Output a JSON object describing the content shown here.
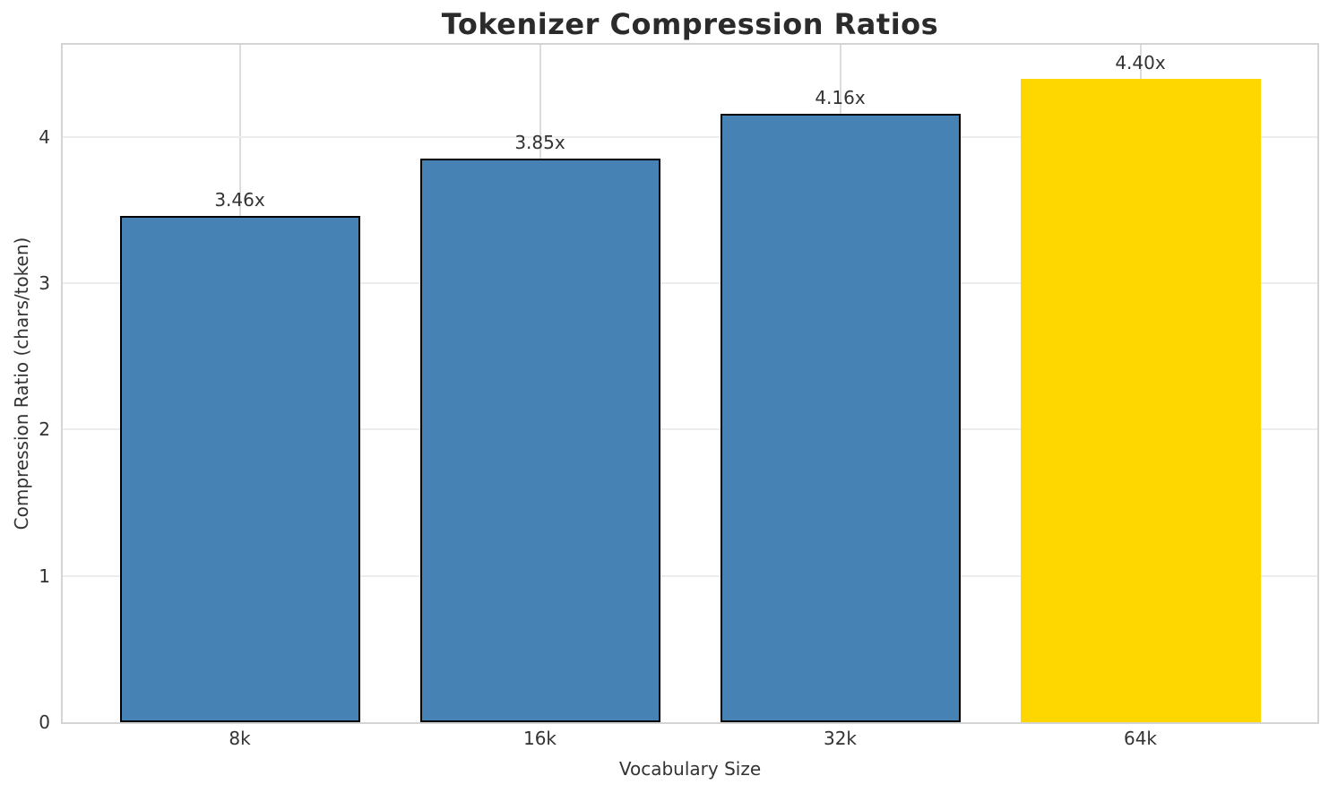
{
  "chart_data": {
    "type": "bar",
    "title": "Tokenizer Compression Ratios",
    "xlabel": "Vocabulary Size",
    "ylabel": "Compression Ratio (chars/token)",
    "categories": [
      "8k",
      "16k",
      "32k",
      "64k"
    ],
    "values": [
      3.46,
      3.85,
      4.16,
      4.4
    ],
    "bar_labels": [
      "3.46x",
      "3.85x",
      "4.16x",
      "4.40x"
    ],
    "yticks": [
      0,
      1,
      2,
      3,
      4
    ],
    "ylim": [
      0,
      4.63
    ],
    "grid": "both",
    "legend": "none",
    "colors": {
      "bar_fill": "#4682B4",
      "bar_highlight_fill": "#FFD700",
      "bar_edge": "#000000",
      "grid_horizontal": "#ededed",
      "grid_vertical": "#dcdcdc",
      "spine": "#d4d4d4",
      "text": "#333333",
      "title_text": "#2b2b2b"
    },
    "bar_fills": [
      "#4682B4",
      "#4682B4",
      "#4682B4",
      "#FFD700"
    ],
    "bar_edges": [
      "#000000",
      "#000000",
      "#000000",
      "none"
    ]
  }
}
